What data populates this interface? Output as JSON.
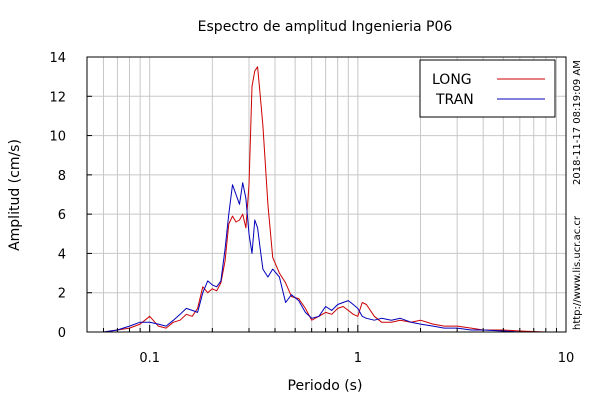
{
  "chart_data": {
    "type": "line",
    "title": "Espectro de amplitud Ingenieria P06",
    "xlabel": "Periodo (s)",
    "ylabel": "Amplitud (cm/s)",
    "x_scale": "log",
    "xlim": [
      0.05,
      10
    ],
    "ylim": [
      0,
      14
    ],
    "x_ticks": [
      {
        "value": 0.1,
        "label": "0.1"
      },
      {
        "value": 1,
        "label": "1"
      },
      {
        "value": 10,
        "label": "10"
      }
    ],
    "y_ticks": [
      {
        "value": 0,
        "label": "0"
      },
      {
        "value": 2,
        "label": "2"
      },
      {
        "value": 4,
        "label": "4"
      },
      {
        "value": 6,
        "label": "6"
      },
      {
        "value": 8,
        "label": "8"
      },
      {
        "value": 10,
        "label": "10"
      },
      {
        "value": 12,
        "label": "12"
      },
      {
        "value": 14,
        "label": "14"
      }
    ],
    "grid": true,
    "legend_position": "top-right",
    "series": [
      {
        "name": "LONG",
        "color": "#cc0000",
        "x": [
          0.06,
          0.07,
          0.08,
          0.09,
          0.1,
          0.11,
          0.12,
          0.13,
          0.14,
          0.15,
          0.16,
          0.17,
          0.18,
          0.19,
          0.2,
          0.21,
          0.22,
          0.23,
          0.24,
          0.25,
          0.26,
          0.27,
          0.28,
          0.29,
          0.3,
          0.31,
          0.32,
          0.33,
          0.34,
          0.35,
          0.37,
          0.39,
          0.42,
          0.45,
          0.48,
          0.52,
          0.56,
          0.6,
          0.65,
          0.7,
          0.75,
          0.8,
          0.85,
          0.9,
          0.95,
          1.0,
          1.05,
          1.1,
          1.2,
          1.3,
          1.45,
          1.6,
          1.8,
          2.0,
          2.3,
          2.6,
          3.0,
          3.5,
          4.0,
          5.0,
          6.0,
          8.0,
          10.0
        ],
        "y": [
          0.0,
          0.1,
          0.2,
          0.4,
          0.8,
          0.3,
          0.2,
          0.5,
          0.6,
          0.9,
          0.8,
          1.2,
          2.3,
          2.0,
          2.2,
          2.1,
          2.5,
          3.6,
          5.5,
          5.9,
          5.6,
          5.7,
          6.0,
          5.3,
          7.5,
          12.5,
          13.3,
          13.5,
          12.0,
          10.5,
          6.5,
          3.8,
          3.0,
          2.5,
          1.8,
          1.7,
          1.2,
          0.6,
          0.8,
          1.0,
          0.9,
          1.2,
          1.3,
          1.1,
          0.9,
          0.8,
          1.5,
          1.4,
          0.8,
          0.5,
          0.5,
          0.6,
          0.5,
          0.6,
          0.4,
          0.3,
          0.3,
          0.2,
          0.1,
          0.1,
          0.05,
          0.0,
          0.0
        ]
      },
      {
        "name": "TRAN",
        "color": "#0000bb",
        "x": [
          0.06,
          0.07,
          0.08,
          0.09,
          0.1,
          0.11,
          0.12,
          0.13,
          0.14,
          0.15,
          0.16,
          0.17,
          0.18,
          0.19,
          0.2,
          0.21,
          0.22,
          0.23,
          0.24,
          0.25,
          0.26,
          0.27,
          0.28,
          0.29,
          0.3,
          0.31,
          0.32,
          0.33,
          0.34,
          0.35,
          0.37,
          0.39,
          0.42,
          0.45,
          0.48,
          0.52,
          0.56,
          0.6,
          0.65,
          0.7,
          0.75,
          0.8,
          0.85,
          0.9,
          0.95,
          1.0,
          1.05,
          1.1,
          1.2,
          1.3,
          1.45,
          1.6,
          1.8,
          2.0,
          2.3,
          2.6,
          3.0,
          3.5,
          4.0,
          5.0,
          6.0,
          8.0,
          10.0
        ],
        "y": [
          0.0,
          0.1,
          0.3,
          0.5,
          0.5,
          0.4,
          0.3,
          0.6,
          0.9,
          1.2,
          1.1,
          1.0,
          2.0,
          2.6,
          2.4,
          2.3,
          2.6,
          4.2,
          6.0,
          7.5,
          7.0,
          6.5,
          7.6,
          6.8,
          5.0,
          4.0,
          5.7,
          5.3,
          4.2,
          3.2,
          2.8,
          3.2,
          2.8,
          1.5,
          1.9,
          1.6,
          1.0,
          0.7,
          0.8,
          1.3,
          1.1,
          1.4,
          1.5,
          1.6,
          1.4,
          1.2,
          0.8,
          0.7,
          0.6,
          0.7,
          0.6,
          0.7,
          0.5,
          0.4,
          0.3,
          0.2,
          0.2,
          0.1,
          0.1,
          0.05,
          0.0,
          0.0,
          0.0
        ]
      }
    ]
  },
  "side_text": {
    "timestamp": "2018-11-17 08:19:09 AM",
    "url": "http://www.lis.ucr.ac.cr"
  }
}
